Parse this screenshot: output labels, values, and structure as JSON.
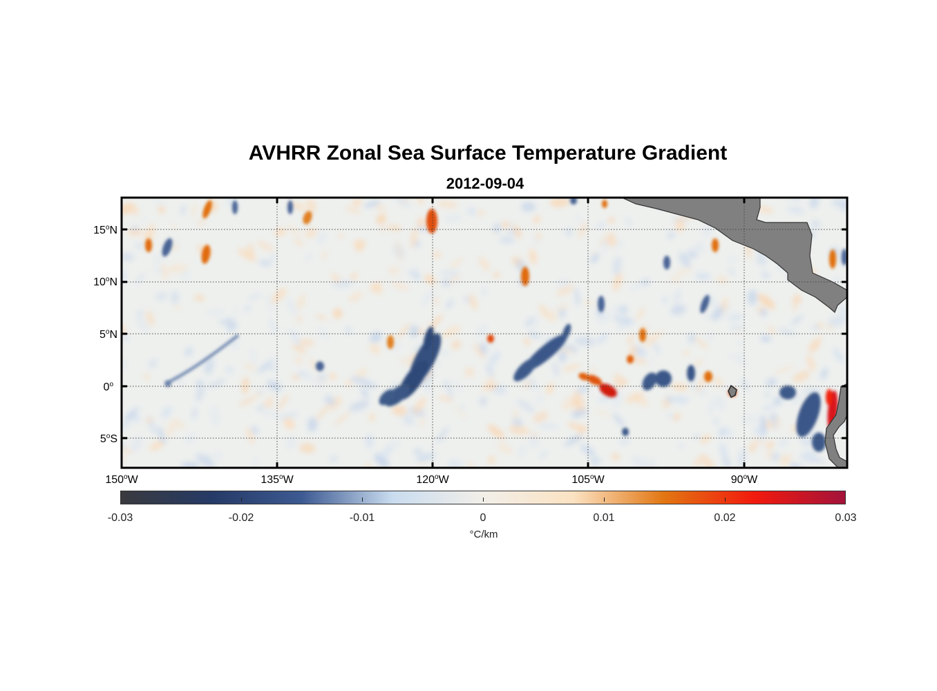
{
  "title": "AVHRR Zonal Sea Surface Temperature Gradient",
  "date": "2012-09-04",
  "lat_labels": [
    {
      "num": "15",
      "sup": "o",
      "dir": "N"
    },
    {
      "num": "10",
      "sup": "o",
      "dir": "N"
    },
    {
      "num": "5",
      "sup": "o",
      "dir": "N"
    },
    {
      "num": "0",
      "sup": "o",
      "dir": ""
    },
    {
      "num": "5",
      "sup": "o",
      "dir": "S"
    }
  ],
  "lon_labels": [
    {
      "num": "150",
      "sup": "o",
      "dir": "W"
    },
    {
      "num": "135",
      "sup": "o",
      "dir": "W"
    },
    {
      "num": "120",
      "sup": "o",
      "dir": "W"
    },
    {
      "num": "105",
      "sup": "o",
      "dir": "W"
    },
    {
      "num": "90",
      "sup": "o",
      "dir": "W"
    }
  ],
  "colorbar": {
    "tick_labels": [
      "-0.03",
      "-0.02",
      "-0.01",
      "0",
      "0.01",
      "0.02",
      "0.03"
    ],
    "unit": "°C/km",
    "colors": [
      "#3a3a3e",
      "#253a66",
      "#3d5a92",
      "#c9dcef",
      "#f2efe9",
      "#fbe2c2",
      "#e27612",
      "#f21a0e",
      "#a3133a"
    ]
  },
  "map": {
    "land_color": "#808080",
    "grid": true
  }
}
